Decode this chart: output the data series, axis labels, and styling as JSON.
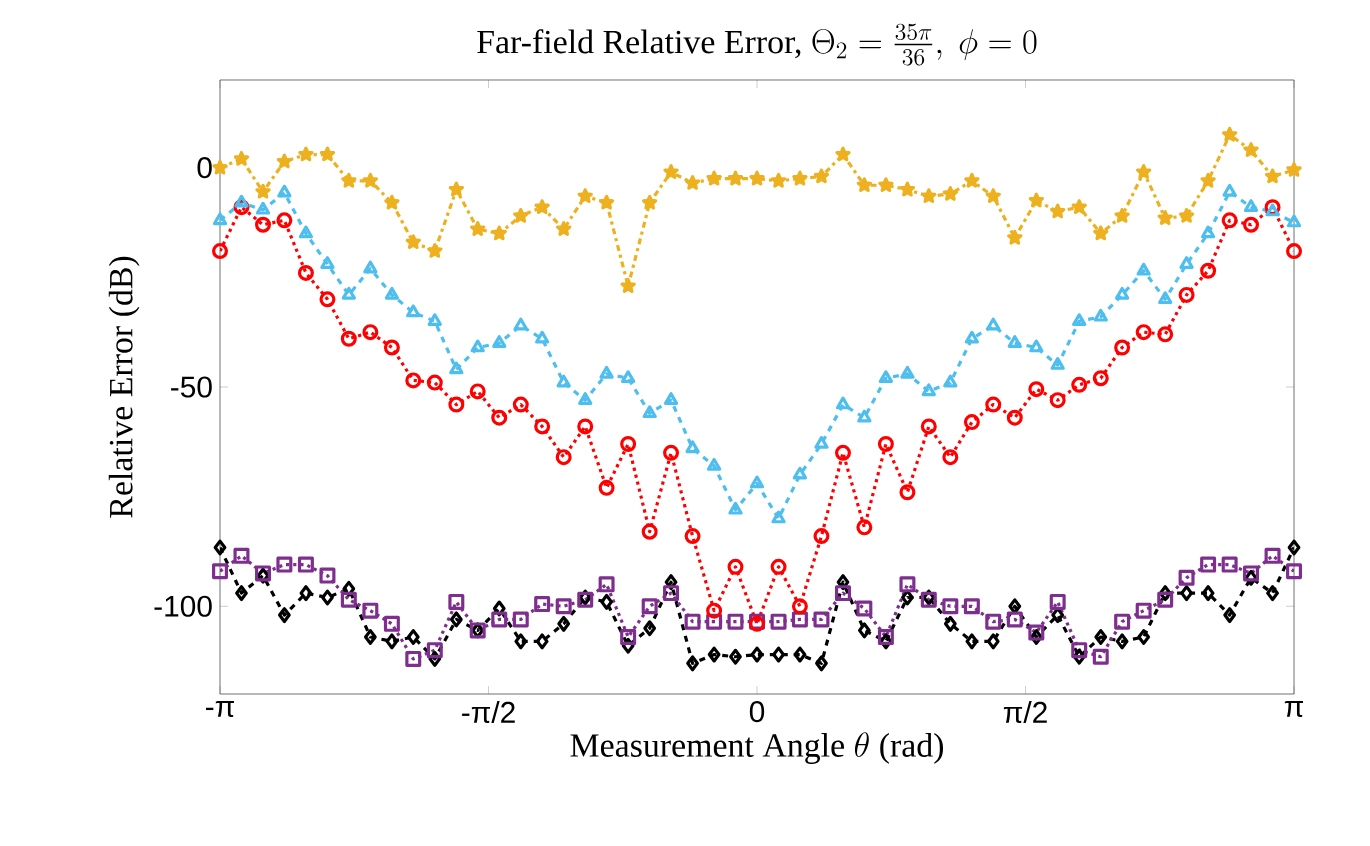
{
  "chart_data": {
    "type": "line",
    "title": "\\text{Far-field Relative Error, }\\Theta_2 = \\frac{35\\pi}{36},\\ \\phi = 0",
    "xlabel": "\\text{Measurement Angle }\\theta\\text{ (rad)}",
    "ylabel": "Relative Error (dB)",
    "x": [
      -3.1416,
      -3.016,
      -2.89,
      -2.765,
      -2.639,
      -2.513,
      -2.388,
      -2.262,
      -2.136,
      -2.011,
      -1.885,
      -1.759,
      -1.634,
      -1.508,
      -1.382,
      -1.257,
      -1.131,
      -1.005,
      -0.88,
      -0.754,
      -0.628,
      -0.503,
      -0.377,
      -0.251,
      -0.126,
      0,
      0.126,
      0.251,
      0.377,
      0.503,
      0.628,
      0.754,
      0.88,
      1.005,
      1.131,
      1.257,
      1.382,
      1.508,
      1.634,
      1.759,
      1.885,
      2.011,
      2.136,
      2.262,
      2.388,
      2.513,
      2.639,
      2.765,
      2.89,
      3.016,
      3.1416
    ],
    "xlim": [
      -3.1416,
      3.1416
    ],
    "xticks": [
      {
        "value": -3.1416,
        "label": "-π"
      },
      {
        "value": -1.5708,
        "label": "-π/2"
      },
      {
        "value": 0,
        "label": "0"
      },
      {
        "value": 1.5708,
        "label": "π/2"
      },
      {
        "value": 3.1416,
        "label": "π"
      }
    ],
    "ylim": [
      -120,
      20
    ],
    "yticks": [
      -100,
      -50,
      0
    ],
    "series": [
      {
        "color": "#edb120",
        "marker": "star",
        "line_style": "dashdot",
        "values": [
          0,
          2,
          -5.5,
          1.4,
          3,
          3,
          -3,
          -3,
          -8,
          -17,
          -19,
          -5,
          -14,
          -15,
          -11,
          -9,
          -14,
          -6.5,
          -8,
          -27,
          -8,
          -1,
          -3.5,
          -2.5,
          -2.5,
          -2.5,
          -3,
          -2.5,
          -2,
          3,
          -4,
          -4,
          -5,
          -6.5,
          -6,
          -3,
          -6.5,
          -16,
          -7.5,
          -10,
          -9,
          -15,
          -11,
          -1,
          -11.5,
          -11,
          -3,
          7.5,
          4,
          -2,
          -0.5
        ]
      },
      {
        "color": "#4dbeee",
        "marker": "triangle",
        "line_style": "dashed",
        "values": [
          -12,
          -8,
          -9.6,
          -5.7,
          -15,
          -22,
          -29,
          -23,
          -29,
          -33,
          -35,
          -46,
          -41,
          -40,
          -36,
          -39,
          -49,
          -53,
          -47,
          -48,
          -56,
          -53,
          -64,
          -68,
          -78,
          -72,
          -80,
          -70,
          -63,
          -54,
          -57,
          -48,
          -47,
          -51,
          -49,
          -39,
          -36,
          -40,
          -41,
          -45,
          -35,
          -34,
          -29,
          -23.5,
          -30,
          -22,
          -15,
          -5.5,
          -9,
          -10,
          -12.5
        ]
      },
      {
        "color": "#ff0000",
        "marker": "circle",
        "line_style": "dotted",
        "values": [
          -19,
          -9,
          -13,
          -12,
          -24,
          -30,
          -39,
          -37.5,
          -41,
          -48.5,
          -49,
          -54,
          -51,
          -57,
          -54,
          -59,
          -66,
          -59,
          -73,
          -63,
          -83,
          -65,
          -84,
          -101,
          -91,
          -104,
          -91,
          -100,
          -84,
          -65,
          -82,
          -63,
          -74,
          -59,
          -66,
          -58,
          -54,
          -57,
          -50.5,
          -53,
          -49.5,
          -48,
          -41,
          -37.5,
          -38,
          -29,
          -23.5,
          -12,
          -13,
          -9,
          -19
        ]
      },
      {
        "color": "#7e2f8e",
        "marker": "square",
        "line_style": "dotted",
        "values": [
          -92,
          -88.5,
          -92.5,
          -90.5,
          -90.5,
          -93,
          -98.5,
          -101,
          -104,
          -112,
          -110,
          -99,
          -105.5,
          -103,
          -103,
          -99.5,
          -100,
          -98.5,
          -95,
          -107,
          -100,
          -97,
          -103.5,
          -103.5,
          -103.5,
          -103.5,
          -103.5,
          -103,
          -103,
          -97,
          -100.5,
          -107,
          -95,
          -98.5,
          -100,
          -100,
          -103.5,
          -103,
          -106,
          -99,
          -110,
          -111.5,
          -103.5,
          -101,
          -98.5,
          -93.5,
          -90.5,
          -90.5,
          -92.5,
          -88.5,
          -92
        ]
      },
      {
        "color": "#000000",
        "marker": "diamond",
        "line_style": "dashed",
        "values": [
          -86.6,
          -97,
          -93,
          -102,
          -97,
          -98,
          -96,
          -107,
          -108,
          -107,
          -112,
          -103,
          -105.5,
          -100.5,
          -108,
          -108,
          -104,
          -98,
          -99,
          -109,
          -105,
          -94.5,
          -113,
          -111,
          -111.5,
          -111,
          -111,
          -111,
          -113,
          -94.5,
          -105.5,
          -108,
          -98,
          -98,
          -104,
          -108,
          -108,
          -100,
          -107,
          -102,
          -111.5,
          -107,
          -108,
          -107,
          -97,
          -97,
          -97,
          -102,
          -93.5,
          -97,
          -86.6
        ]
      }
    ]
  }
}
